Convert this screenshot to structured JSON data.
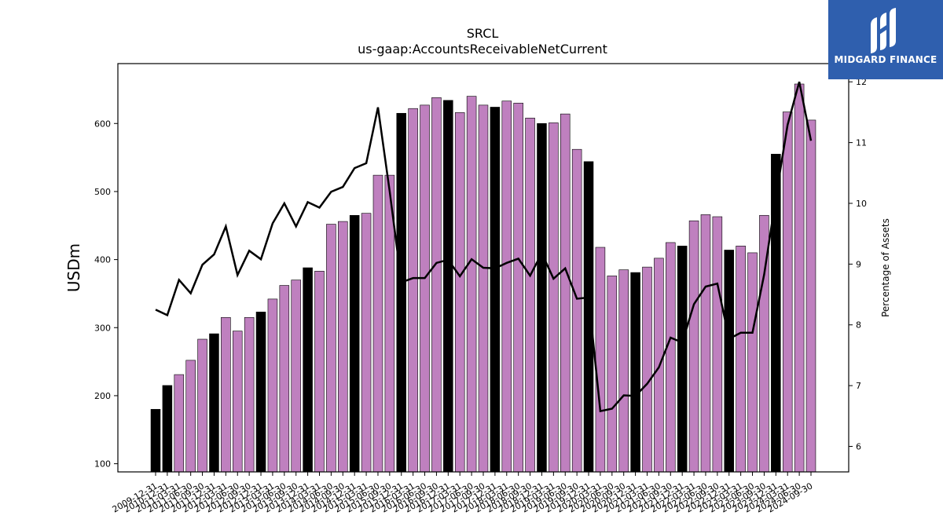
{
  "brand": {
    "name": "MIDGARD FINANCE",
    "logo_icon": "midgard-logo-icon",
    "bg_color": "#2f5fae"
  },
  "chart_data": {
    "type": "bar",
    "title": "SRCL",
    "subtitle": "us-gaap:AccountsReceivableNetCurrent",
    "ylabel": "USDm",
    "y2label": "Percentage of Assets",
    "ylim": [
      88,
      688
    ],
    "y2lim": [
      5.58,
      12.3
    ],
    "yticks": [
      100,
      200,
      300,
      400,
      500,
      600
    ],
    "y2ticks": [
      6,
      7,
      8,
      9,
      10,
      11,
      12
    ],
    "colors": {
      "annual": "#000000",
      "quarterly": "#bf80bf",
      "line": "#000000"
    },
    "categories": [
      "2009-12-31",
      "2010-12-31",
      "2011-03-31",
      "2011-06-30",
      "2011-09-30",
      "2011-12-31",
      "2012-03-31",
      "2012-06-30",
      "2012-09-30",
      "2012-12-31",
      "2013-03-31",
      "2013-06-30",
      "2013-09-30",
      "2013-12-31",
      "2014-03-31",
      "2014-06-30",
      "2014-09-30",
      "2014-12-31",
      "2015-03-31",
      "2015-06-30",
      "2015-09-30",
      "2015-12-31",
      "2016-03-31",
      "2016-06-30",
      "2016-09-30",
      "2016-12-31",
      "2017-03-31",
      "2017-06-30",
      "2017-09-30",
      "2017-12-31",
      "2018-03-31",
      "2018-06-30",
      "2018-09-30",
      "2018-12-31",
      "2019-03-31",
      "2019-06-30",
      "2019-09-30",
      "2019-12-31",
      "2020-03-31",
      "2020-06-30",
      "2020-09-30",
      "2020-12-31",
      "2021-03-31",
      "2021-06-30",
      "2021-09-30",
      "2021-12-31",
      "2022-03-31",
      "2022-06-30",
      "2022-09-30",
      "2022-12-31",
      "2023-03-31",
      "2023-06-30",
      "2023-09-30",
      "2023-12-31",
      "2024-03-31",
      "2024-06-30",
      "2024-09-30"
    ],
    "series": [
      {
        "values": [
          180,
          215,
          231,
          252,
          283,
          291,
          315,
          295,
          315,
          323,
          342,
          362,
          370,
          388,
          383,
          452,
          456,
          465,
          468,
          524,
          524,
          615,
          622,
          627,
          638,
          634,
          616,
          640,
          627,
          624,
          633,
          630,
          608,
          600,
          601,
          614,
          562,
          544,
          418,
          376,
          385,
          381,
          389,
          402,
          425,
          420,
          457,
          466,
          463,
          414,
          420,
          410,
          465,
          555,
          617,
          658,
          605
        ]
      },
      {
        "values": [
          8.25,
          8.16,
          8.74,
          8.52,
          8.99,
          9.16,
          9.62,
          8.82,
          9.22,
          9.08,
          9.67,
          10.0,
          9.62,
          10.02,
          9.93,
          10.19,
          10.27,
          10.58,
          10.66,
          11.58,
          10.2,
          8.7,
          8.77,
          8.77,
          9.02,
          9.07,
          8.8,
          9.08,
          8.94,
          8.93,
          9.02,
          9.09,
          8.81,
          9.18,
          8.76,
          8.93,
          8.43,
          8.45,
          6.58,
          6.62,
          6.84,
          6.83,
          7.03,
          7.3,
          7.79,
          7.71,
          8.34,
          8.63,
          8.68,
          7.77,
          7.87,
          7.87,
          8.83,
          10.1,
          11.29,
          12.0,
          11.03
        ]
      }
    ],
    "annual_flags": [
      1,
      1,
      0,
      0,
      0,
      1,
      0,
      0,
      0,
      1,
      0,
      0,
      0,
      1,
      0,
      0,
      0,
      1,
      0,
      0,
      0,
      1,
      0,
      0,
      0,
      1,
      0,
      0,
      0,
      1,
      0,
      0,
      0,
      1,
      0,
      0,
      0,
      1,
      0,
      0,
      0,
      1,
      0,
      0,
      0,
      1,
      0,
      0,
      0,
      1,
      0,
      0,
      0,
      1,
      0,
      0,
      0
    ]
  }
}
